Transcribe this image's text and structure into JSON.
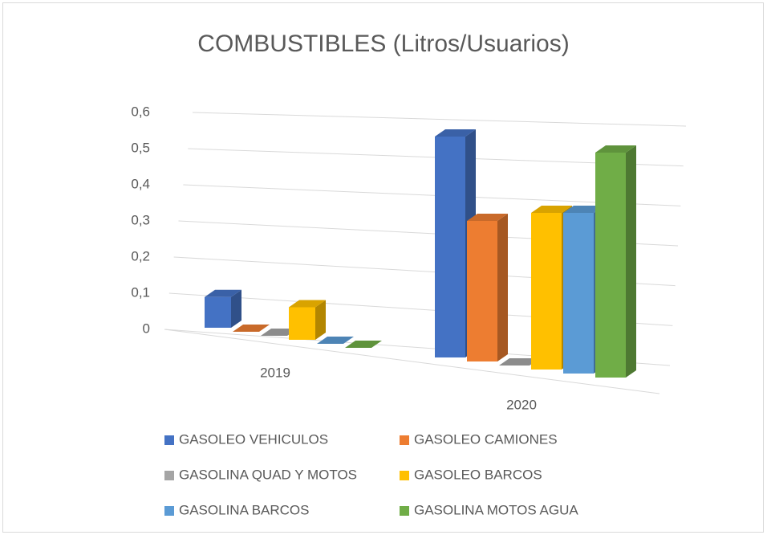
{
  "chart_data": {
    "type": "bar3d",
    "title": "COMBUSTIBLES (Litros/Usuarios)",
    "categories": [
      "2019",
      "2020"
    ],
    "series": [
      {
        "name": "GASOLEO VEHICULOS",
        "color": "#4472c4",
        "values": [
          0.085,
          0.55
        ]
      },
      {
        "name": "GASOLEO CAMIONES",
        "color": "#ed7d31",
        "values": [
          0,
          0.35
        ]
      },
      {
        "name": "GASOLINA QUAD Y MOTOS",
        "color": "#a5a5a5",
        "values": [
          0,
          0
        ]
      },
      {
        "name": "GASOLEO BARCOS",
        "color": "#ffc000",
        "values": [
          0.09,
          0.39
        ]
      },
      {
        "name": "GASOLINA BARCOS",
        "color": "#5b9bd5",
        "values": [
          0,
          0.4
        ]
      },
      {
        "name": "GASOLINA MOTOS AGUA",
        "color": "#70ad47",
        "values": [
          0,
          0.56
        ]
      }
    ],
    "ylim": [
      0,
      0.6
    ],
    "yticks": [
      0,
      {
        "value": 0.1,
        "label": "0,1"
      },
      {
        "value": 0.2,
        "label": "0,2"
      },
      {
        "value": 0.3,
        "label": "0,3"
      },
      {
        "value": 0.4,
        "label": "0,4"
      },
      {
        "value": 0.5,
        "label": "0,5"
      },
      {
        "value": 0.6,
        "label": "0,6"
      }
    ],
    "grid": true
  }
}
